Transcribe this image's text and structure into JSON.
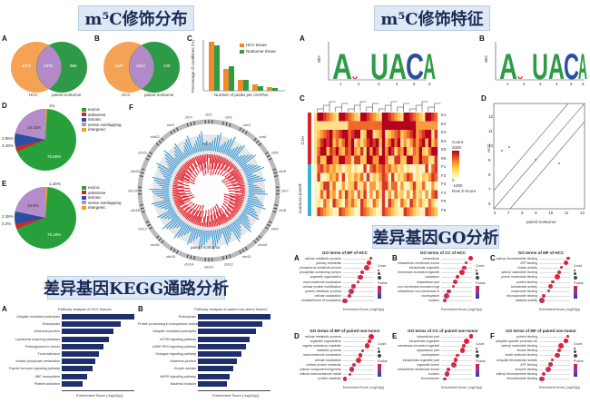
{
  "banners": {
    "m5c_distribution": "m⁵C修饰分布",
    "m5c_features": "m⁵C修饰特征",
    "go_analysis": "差异基因GO分析",
    "kegg_analysis": "差异基因KEGG通路分析"
  },
  "panel_letters": {
    "A": "A",
    "B": "B",
    "C": "C",
    "D": "D",
    "E": "E",
    "F": "F"
  },
  "venn": {
    "A": {
      "left": "4073",
      "center": "2376",
      "right": "885",
      "left_label": "HCC",
      "right_label": "paired nontumor"
    },
    "B": {
      "left": "1337",
      "center": "1642",
      "right": "125",
      "left_label": "HCC",
      "right_label": "paired nontumor"
    }
  },
  "barC": {
    "ylabel": "Percentage of conditions (%)",
    "xlabel": "Number of peaks per circRNA",
    "legend": [
      "HCC tissue",
      "Nontumor tissue"
    ],
    "colors": [
      "#f08a2c",
      "#2e9b45"
    ]
  },
  "pie_legend": [
    "exonic",
    "antisense",
    "intronic",
    "sense overlapping",
    "intergenic"
  ],
  "pie_colors": [
    "#27a03c",
    "#d8232a",
    "#2a4fa0",
    "#b48cc8",
    "#e7a21e"
  ],
  "pieD": {
    "labels": [
      "75.65%",
      "19.32%",
      "2.86%",
      "3.48%",
      "1%"
    ]
  },
  "pieE": {
    "labels": [
      "75.16%",
      "19.9%",
      "2.38%",
      "3.3%",
      "1.25%"
    ]
  },
  "circos": {
    "center_top": "HCC",
    "center_bottom": "paired nontumor",
    "chrom": [
      "chr1",
      "chr2",
      "chr3",
      "chr4",
      "chr5",
      "chr6",
      "chr7",
      "chr8",
      "chr9",
      "chr10",
      "chr11",
      "chr12",
      "chr13",
      "chr14",
      "chr15",
      "chr16",
      "chr17",
      "chr18",
      "chr19",
      "chr20",
      "chr21",
      "chr22",
      "chrX",
      "chrY"
    ]
  },
  "motifs": {
    "A": {
      "letters": [
        "A",
        "C",
        "U",
        "A",
        "C",
        "A"
      ],
      "ylabel": "Bits",
      "positions": [
        "1",
        "2",
        "3",
        "4",
        "5",
        "6"
      ]
    },
    "B": {
      "letters": [
        "A",
        "C",
        "U",
        "A",
        "C",
        "A"
      ],
      "ylabel": "Bits",
      "positions": [
        "1",
        "2",
        "3",
        "4",
        "5",
        "6"
      ]
    }
  },
  "heatmap": {
    "rows": [
      "E1",
      "E2",
      "E3",
      "E4",
      "E5",
      "E6",
      "F1",
      "F2",
      "F3",
      "F4",
      "F5",
      "F6"
    ],
    "group_top": "HCC",
    "group_bottom": "paired nontumor",
    "key_title": "Count",
    "key_values": [
      "2000",
      "0",
      "-1000"
    ],
    "key_label": "Row Z-Score"
  },
  "scatterD": {
    "xlabel": "paired nontumor",
    "ylabel": "HCC",
    "xticks": [
      "6",
      "7",
      "8",
      "9",
      "10",
      "11",
      "12"
    ],
    "yticks": [
      "12",
      "11",
      "10",
      "9",
      "8",
      "7",
      "6"
    ]
  },
  "go_panels": [
    {
      "letter": "A",
      "title": "GO terms of BP of HCC",
      "terms": [
        "cellular metabolic process",
        "primary metabolic",
        "phosphorus metabolic process",
        "phosphate-containing compound metabolic process",
        "organelle organization",
        "macromolecule localization",
        "cellular protein modification",
        "protein metabolic process",
        "cellular localization",
        "establishment of localization"
      ]
    },
    {
      "letter": "B",
      "title": "GO terms of CC of HCC",
      "terms": [
        "intracellular",
        "intracellular membrane-bounded organelle",
        "intracellular organelle",
        "membrane-bounded organelle",
        "cytoplasm",
        "intracellular part",
        "non-membrane-bounded organelle",
        "intracellular non-membrane-bounded organelle",
        "nucleoplasm",
        "nucleus"
      ]
    },
    {
      "letter": "C",
      "title": "GO terms of MF of HCC",
      "terms": [
        "adenyl ribonucleotide binding",
        "ATP binding",
        "kinase activity",
        "adenyl nucleotide binding",
        "purine nucleoside binding",
        "protein binding",
        "transferase activity",
        "nucleoside binding",
        "ribonucleotide binding",
        "catalytic activity"
      ]
    },
    {
      "letter": "D",
      "title": "GO terms of BP of paired non-tumor",
      "terms": [
        "cellular metabolic process",
        "organelle organization",
        "organic substance catabolic",
        "catabolic process",
        "macromolecule localization",
        "cellular localization",
        "cellular protein metabolic",
        "cellular component biogenesis",
        "cellular macromolecule metabolic",
        "protein catabolic"
      ]
    },
    {
      "letter": "E",
      "title": "GO terms of CC of paired non-tumor",
      "terms": [
        "intracellular part",
        "intracellular organelle",
        "membrane-bounded organelle",
        "cytoplasmic part",
        "nucleoplasm",
        "intracellular organelle part",
        "organelle lumen",
        "intracellular membrane-bounded organelle",
        "nucleus",
        "chromosome"
      ]
    },
    {
      "letter": "F",
      "title": "GO terms of MF of paired non-tumor",
      "terms": [
        "protein binding",
        "ubiquitin-specific protease activity",
        "adenyl nucleotide binding",
        "kinase binding",
        "small molecule binding",
        "ubiquitin thioesterase activity",
        "ATP binding",
        "enzyme binding",
        "adenyl ribonucleotide binding",
        "ribonucleotide binding"
      ]
    }
  ],
  "go_xlabel": "Enrichment Score (-log10(p))",
  "go_key": {
    "size_title": "Count",
    "color_title": "Pvalue"
  },
  "kegg": {
    "A": {
      "title": "Pathway analysis of HCC tissues",
      "xlabel": "Enrichment Score (-log10(p))",
      "terms": [
        "Ubiquitin mediated proteolysis",
        "Endocytosis",
        "Adherens junction",
        "Lysosomal acquiring pathways",
        "Proteoglycans in cancer",
        "Focal adhesion",
        "Inositol phosphate metabolism",
        "Thyroid hormone signaling pathway",
        "ABC transporters",
        "Platelet activation"
      ],
      "values": [
        6.2,
        5.0,
        4.4,
        4.0,
        3.6,
        3.2,
        2.9,
        2.6,
        2.2,
        1.8
      ]
    },
    "B": {
      "title": "Pathway analysis of paired non-tumor tissues",
      "xlabel": "Enrichment Score (-log10(p))",
      "terms": [
        "Endocytosis",
        "Protein processing in endoplasmic reticulum",
        "Ubiquitin mediated proteolysis",
        "mTOR signaling pathway",
        "cGMP-PKG signaling pathway",
        "Glucagon signaling pathway",
        "Adherens junction",
        "Oocyte meiosis",
        "MAPK signaling pathway",
        "Bacterial invasion"
      ],
      "values": [
        7.0,
        6.2,
        5.6,
        5.0,
        4.6,
        4.2,
        3.8,
        3.4,
        3.1,
        2.8
      ]
    }
  }
}
